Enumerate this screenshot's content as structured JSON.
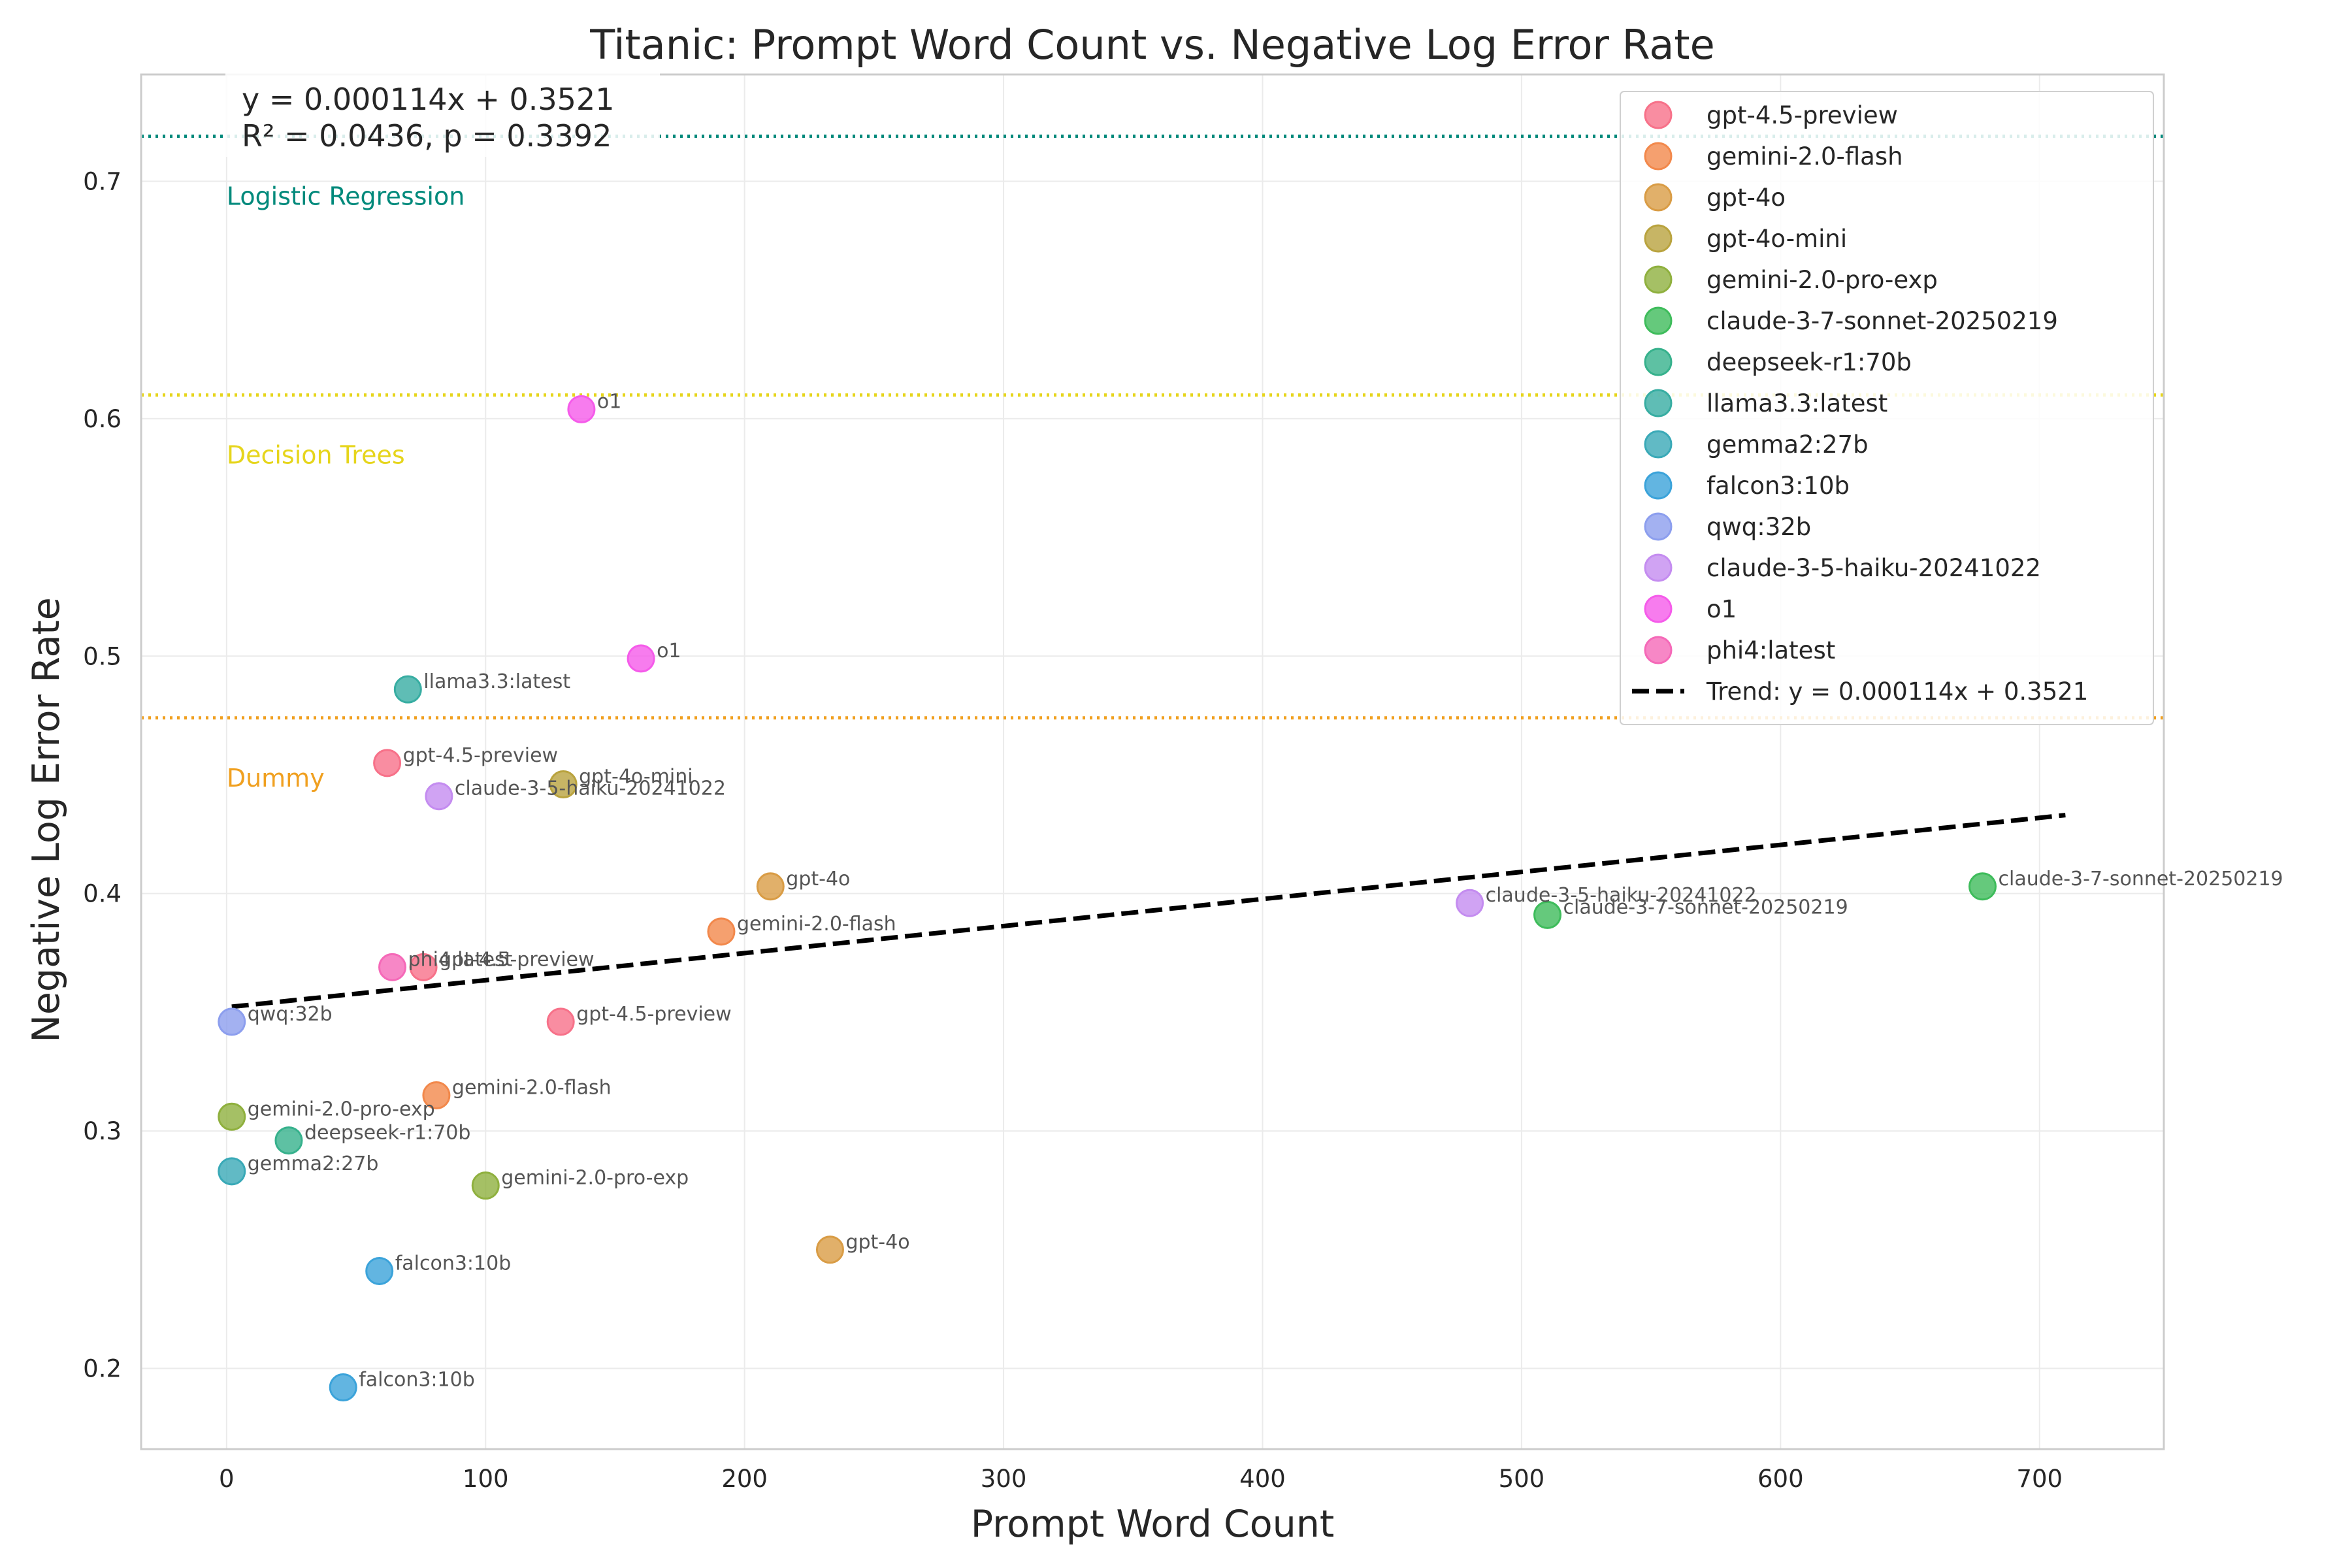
{
  "chart_data": {
    "type": "scatter",
    "title": "Titanic: Prompt Word Count vs. Negative Log Error Rate",
    "xlabel": "Prompt Word Count",
    "ylabel": "Negative Log Error Rate",
    "xlim": [
      -33,
      748
    ],
    "ylim": [
      0.166,
      0.745
    ],
    "xticks": [
      0,
      100,
      200,
      300,
      400,
      500,
      600,
      700
    ],
    "yticks": [
      0.2,
      0.3,
      0.4,
      0.5,
      0.6,
      0.7
    ],
    "grid": true,
    "legend_position": "top-right",
    "equation_box": [
      "y = 0.000114x + 0.3521",
      "R² = 0.0436, p = 0.3392"
    ],
    "trend": {
      "label": "Trend: y = 0.000114x + 0.3521",
      "slope": 0.000114,
      "intercept": 0.3521,
      "x_range": [
        2,
        710
      ],
      "color": "#000000"
    },
    "reference_lines": [
      {
        "name": "Logistic Regression",
        "y": 0.719,
        "color": "#00897b"
      },
      {
        "name": "Decision Trees",
        "y": 0.61,
        "color": "#e6d51c"
      },
      {
        "name": "Dummy",
        "y": 0.474,
        "color": "#f0a020"
      }
    ],
    "series": [
      {
        "name": "gpt-4.5-preview",
        "color": "#f77189",
        "points": [
          {
            "x": 62,
            "y": 0.455
          },
          {
            "x": 76,
            "y": 0.369
          },
          {
            "x": 129,
            "y": 0.346
          }
        ]
      },
      {
        "name": "gemini-2.0-flash",
        "color": "#f2884b",
        "points": [
          {
            "x": 191,
            "y": 0.384
          },
          {
            "x": 81,
            "y": 0.315
          }
        ]
      },
      {
        "name": "gpt-4o",
        "color": "#d99c45",
        "points": [
          {
            "x": 210,
            "y": 0.403
          },
          {
            "x": 233,
            "y": 0.25
          }
        ]
      },
      {
        "name": "gpt-4o-mini",
        "color": "#b9a33e",
        "points": [
          {
            "x": 130,
            "y": 0.446
          }
        ]
      },
      {
        "name": "gemini-2.0-pro-exp",
        "color": "#8fb03e",
        "points": [
          {
            "x": 2,
            "y": 0.306
          },
          {
            "x": 100,
            "y": 0.277
          }
        ]
      },
      {
        "name": "claude-3-7-sonnet-20250219",
        "color": "#3ebc5b",
        "points": [
          {
            "x": 678,
            "y": 0.403
          },
          {
            "x": 510,
            "y": 0.391
          }
        ]
      },
      {
        "name": "deepseek-r1:70b",
        "color": "#36b18c",
        "points": [
          {
            "x": 24,
            "y": 0.296
          }
        ]
      },
      {
        "name": "llama3.3:latest",
        "color": "#37ada2",
        "points": [
          {
            "x": 70,
            "y": 0.486
          }
        ]
      },
      {
        "name": "gemma2:27b",
        "color": "#39a9b7",
        "points": [
          {
            "x": 2,
            "y": 0.283
          }
        ]
      },
      {
        "name": "falcon3:10b",
        "color": "#3ba3da",
        "points": [
          {
            "x": 59,
            "y": 0.241
          },
          {
            "x": 45,
            "y": 0.192
          }
        ]
      },
      {
        "name": "qwq:32b",
        "color": "#8c9eee",
        "points": [
          {
            "x": 2,
            "y": 0.346
          }
        ]
      },
      {
        "name": "claude-3-5-haiku-20241022",
        "color": "#c48cf0",
        "points": [
          {
            "x": 82,
            "y": 0.441
          },
          {
            "x": 480,
            "y": 0.396
          }
        ]
      },
      {
        "name": "o1",
        "color": "#f55bea",
        "points": [
          {
            "x": 137,
            "y": 0.604
          },
          {
            "x": 160,
            "y": 0.499
          }
        ]
      },
      {
        "name": "phi4:latest",
        "color": "#f569b8",
        "points": [
          {
            "x": 64,
            "y": 0.369
          }
        ]
      }
    ]
  }
}
